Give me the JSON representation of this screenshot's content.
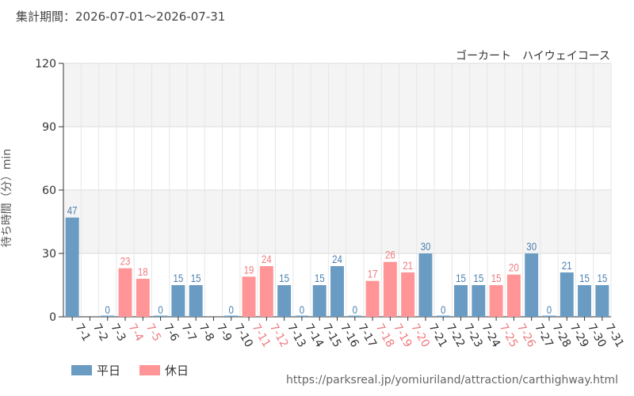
{
  "header": {
    "period": "集計期間：2026-07-01～2026-07-31"
  },
  "footer": {
    "url": "https://parksreal.jp/yomiuriland/attraction/carthighway.html"
  },
  "colors": {
    "weekday": "#6a9bc3",
    "holiday": "#ff9596",
    "weekday_label": "#4a7fb0",
    "holiday_label": "#f07a7e"
  },
  "chart_data": {
    "type": "bar",
    "title": "ゴーカート　ハイウェイコース",
    "ylabel": "待ち時間（分）min",
    "xlabel": "",
    "ylim": [
      0,
      120
    ],
    "yticks": [
      0,
      30,
      60,
      90,
      120
    ],
    "grid": true,
    "legend": {
      "position": "bottom-left",
      "entries": [
        {
          "label": "平日",
          "key": "weekday"
        },
        {
          "label": "休日",
          "key": "holiday"
        }
      ]
    },
    "categories": [
      "7-1",
      "7-2",
      "7-3",
      "7-4",
      "7-5",
      "7-6",
      "7-7",
      "7-8",
      "7-9",
      "7-10",
      "7-11",
      "7-12",
      "7-13",
      "7-14",
      "7-15",
      "7-16",
      "7-17",
      "7-18",
      "7-19",
      "7-20",
      "7-21",
      "7-22",
      "7-23",
      "7-24",
      "7-25",
      "7-26",
      "7-27",
      "7-28",
      "7-29",
      "7-30",
      "7-31"
    ],
    "values": [
      47,
      null,
      0,
      23,
      18,
      0,
      15,
      15,
      null,
      0,
      19,
      24,
      15,
      0,
      15,
      24,
      0,
      17,
      26,
      21,
      30,
      0,
      15,
      15,
      15,
      20,
      30,
      0,
      21,
      15,
      15
    ],
    "day_type": [
      "weekday",
      "weekday",
      "weekday",
      "holiday",
      "holiday",
      "weekday",
      "weekday",
      "weekday",
      "weekday",
      "weekday",
      "holiday",
      "holiday",
      "weekday",
      "weekday",
      "weekday",
      "weekday",
      "weekday",
      "holiday",
      "holiday",
      "holiday",
      "weekday",
      "weekday",
      "weekday",
      "weekday",
      "holiday",
      "holiday",
      "weekday",
      "weekday",
      "weekday",
      "weekday",
      "weekday"
    ]
  }
}
